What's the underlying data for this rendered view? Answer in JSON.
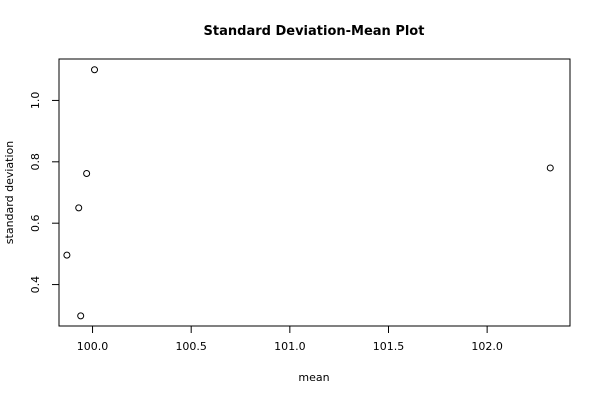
{
  "chart_data": {
    "type": "scatter",
    "title": "Standard Deviation-Mean Plot",
    "xlabel": "mean",
    "ylabel": "standard deviation",
    "x_ticks": [
      100.0,
      100.5,
      101.0,
      101.5,
      102.0
    ],
    "x_tick_labels": [
      "100.0",
      "100.5",
      "101.0",
      "101.5",
      "102.0"
    ],
    "y_ticks": [
      0.4,
      0.6,
      0.8,
      1.0
    ],
    "y_tick_labels": [
      "0.4",
      "0.6",
      "0.8",
      "1.0"
    ],
    "xlim": [
      99.83,
      102.42
    ],
    "ylim": [
      0.265,
      1.135
    ],
    "grid": false,
    "points": [
      {
        "x": 100.01,
        "y": 1.1
      },
      {
        "x": 99.97,
        "y": 0.762
      },
      {
        "x": 99.93,
        "y": 0.65
      },
      {
        "x": 99.87,
        "y": 0.496
      },
      {
        "x": 99.94,
        "y": 0.298
      },
      {
        "x": 102.32,
        "y": 0.78
      }
    ]
  }
}
